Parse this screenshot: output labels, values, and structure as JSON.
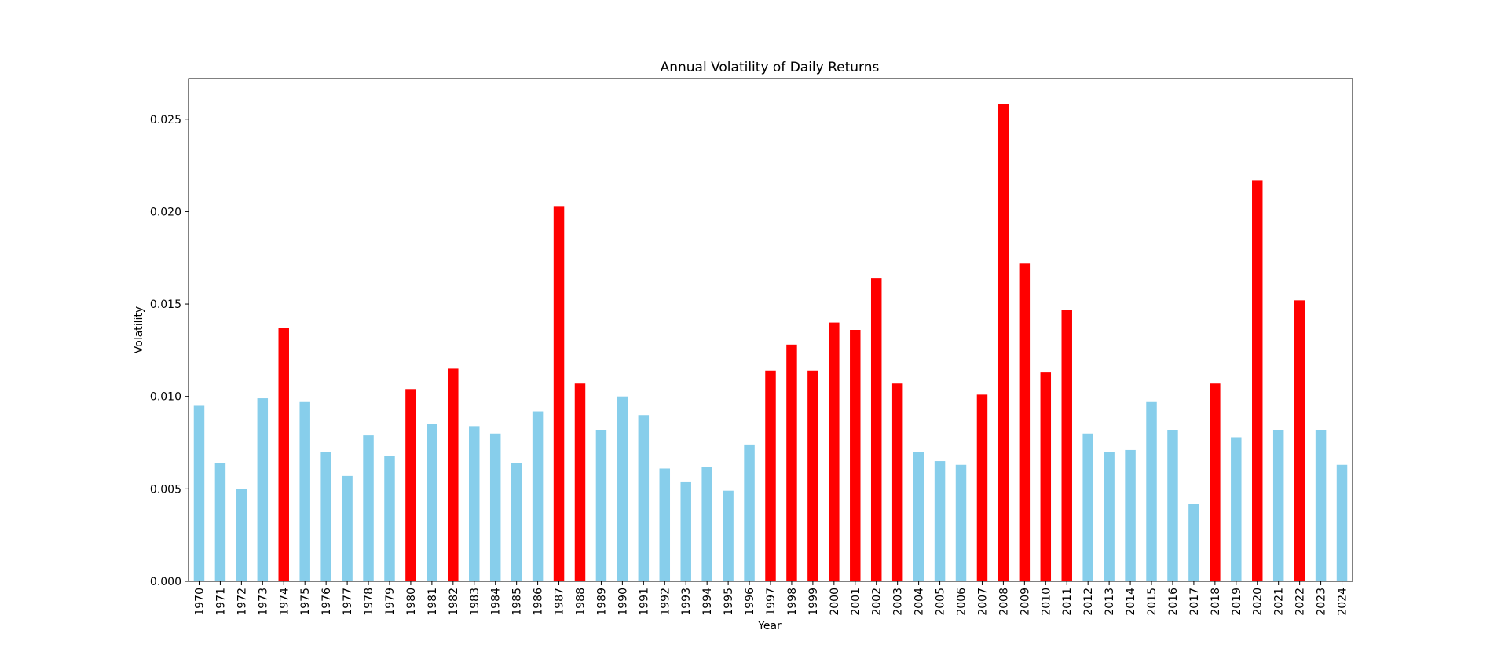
{
  "chart_data": {
    "type": "bar",
    "title": "Annual Volatility of Daily Returns",
    "xlabel": "Year",
    "ylabel": "Volatility",
    "ylim": [
      0,
      0.0272
    ],
    "yticks": [
      0.0,
      0.005,
      0.01,
      0.015,
      0.02,
      0.025
    ],
    "ytick_labels": [
      "0.000",
      "0.005",
      "0.010",
      "0.015",
      "0.020",
      "0.025"
    ],
    "grid": false,
    "colors": {
      "normal": "#87ceeb",
      "high": "#ff0000"
    },
    "categories": [
      "1970",
      "1971",
      "1972",
      "1973",
      "1974",
      "1975",
      "1976",
      "1977",
      "1978",
      "1979",
      "1980",
      "1981",
      "1982",
      "1983",
      "1984",
      "1985",
      "1986",
      "1987",
      "1988",
      "1989",
      "1990",
      "1991",
      "1992",
      "1993",
      "1994",
      "1995",
      "1996",
      "1997",
      "1998",
      "1999",
      "2000",
      "2001",
      "2002",
      "2003",
      "2004",
      "2005",
      "2006",
      "2007",
      "2008",
      "2009",
      "2010",
      "2011",
      "2012",
      "2013",
      "2014",
      "2015",
      "2016",
      "2017",
      "2018",
      "2019",
      "2020",
      "2021",
      "2022",
      "2023",
      "2024"
    ],
    "values": [
      0.0095,
      0.0064,
      0.005,
      0.0099,
      0.0137,
      0.0097,
      0.007,
      0.0057,
      0.0079,
      0.0068,
      0.0104,
      0.0085,
      0.0115,
      0.0084,
      0.008,
      0.0064,
      0.0092,
      0.0203,
      0.0107,
      0.0082,
      0.01,
      0.009,
      0.0061,
      0.0054,
      0.0062,
      0.0049,
      0.0074,
      0.0114,
      0.0128,
      0.0114,
      0.014,
      0.0136,
      0.0164,
      0.0107,
      0.007,
      0.0065,
      0.0063,
      0.0101,
      0.0258,
      0.0172,
      0.0113,
      0.0147,
      0.008,
      0.007,
      0.0071,
      0.0097,
      0.0082,
      0.0042,
      0.0107,
      0.0078,
      0.0217,
      0.0082,
      0.0152,
      0.0082,
      0.0063
    ],
    "highlighted": [
      false,
      false,
      false,
      false,
      true,
      false,
      false,
      false,
      false,
      false,
      true,
      false,
      true,
      false,
      false,
      false,
      false,
      true,
      true,
      false,
      false,
      false,
      false,
      false,
      false,
      false,
      false,
      true,
      true,
      true,
      true,
      true,
      true,
      true,
      false,
      false,
      false,
      true,
      true,
      true,
      true,
      true,
      false,
      false,
      false,
      false,
      false,
      false,
      true,
      false,
      true,
      false,
      true,
      false,
      false
    ]
  }
}
